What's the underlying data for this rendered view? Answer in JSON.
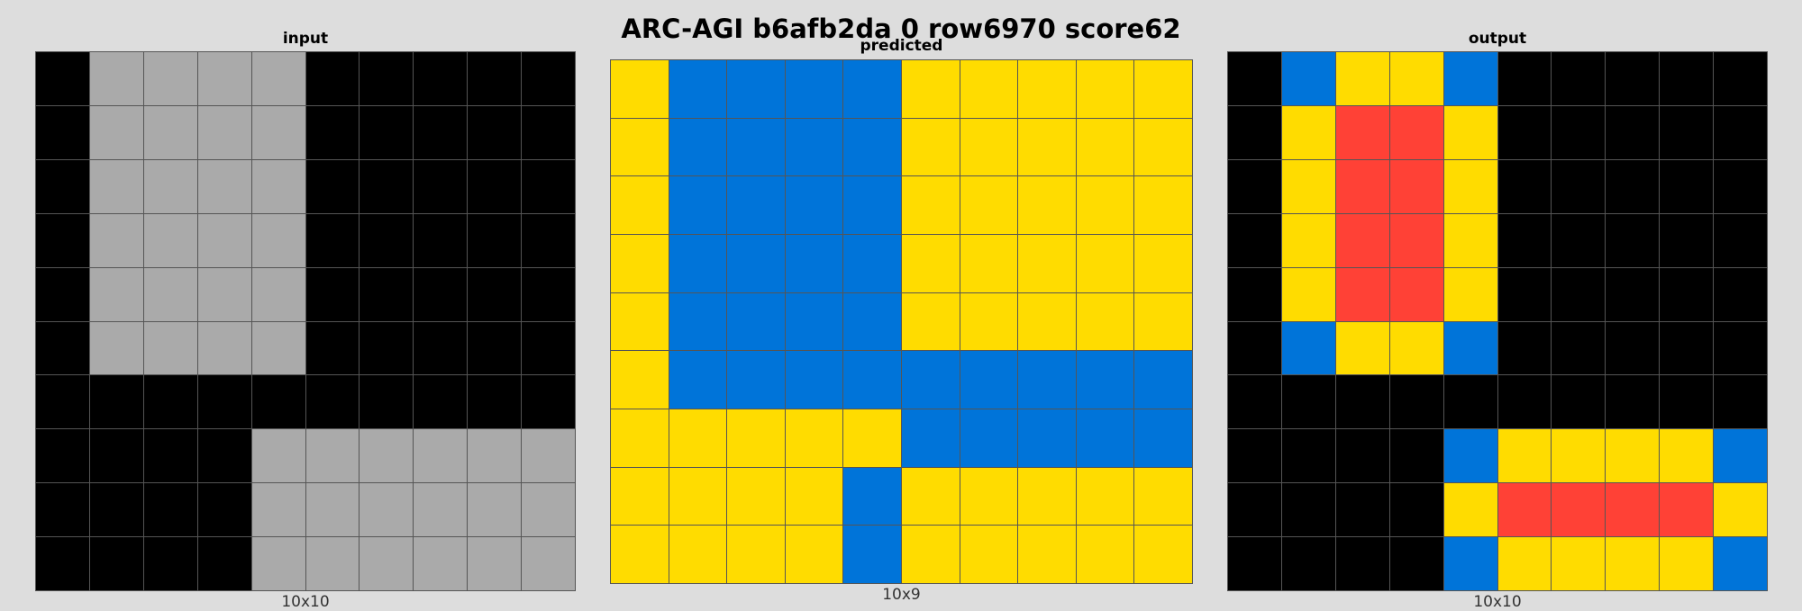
{
  "title": "ARC-AGI b6afb2da 0 row6970 score62",
  "palette": {
    "0": "#000000",
    "1": "#0074d9",
    "2": "#ff4136",
    "4": "#ffdc00",
    "5": "#aaaaaa"
  },
  "panels": [
    {
      "label": "input",
      "dims": "10x10",
      "rows": 10,
      "cols": 10,
      "grid": [
        [
          0,
          5,
          5,
          5,
          5,
          0,
          0,
          0,
          0,
          0
        ],
        [
          0,
          5,
          5,
          5,
          5,
          0,
          0,
          0,
          0,
          0
        ],
        [
          0,
          5,
          5,
          5,
          5,
          0,
          0,
          0,
          0,
          0
        ],
        [
          0,
          5,
          5,
          5,
          5,
          0,
          0,
          0,
          0,
          0
        ],
        [
          0,
          5,
          5,
          5,
          5,
          0,
          0,
          0,
          0,
          0
        ],
        [
          0,
          5,
          5,
          5,
          5,
          0,
          0,
          0,
          0,
          0
        ],
        [
          0,
          0,
          0,
          0,
          0,
          0,
          0,
          0,
          0,
          0
        ],
        [
          0,
          0,
          0,
          0,
          5,
          5,
          5,
          5,
          5,
          5
        ],
        [
          0,
          0,
          0,
          0,
          5,
          5,
          5,
          5,
          5,
          5
        ],
        [
          0,
          0,
          0,
          0,
          5,
          5,
          5,
          5,
          5,
          5
        ]
      ]
    },
    {
      "label": "predicted",
      "dims": "10x9",
      "rows": 9,
      "cols": 10,
      "grid": [
        [
          4,
          1,
          1,
          1,
          1,
          4,
          4,
          4,
          4,
          4
        ],
        [
          4,
          1,
          1,
          1,
          1,
          4,
          4,
          4,
          4,
          4
        ],
        [
          4,
          1,
          1,
          1,
          1,
          4,
          4,
          4,
          4,
          4
        ],
        [
          4,
          1,
          1,
          1,
          1,
          4,
          4,
          4,
          4,
          4
        ],
        [
          4,
          1,
          1,
          1,
          1,
          4,
          4,
          4,
          4,
          4
        ],
        [
          4,
          1,
          1,
          1,
          1,
          1,
          1,
          1,
          1,
          1
        ],
        [
          4,
          4,
          4,
          4,
          4,
          1,
          1,
          1,
          1,
          1
        ],
        [
          4,
          4,
          4,
          4,
          1,
          4,
          4,
          4,
          4,
          4
        ],
        [
          4,
          4,
          4,
          4,
          1,
          4,
          4,
          4,
          4,
          4
        ]
      ]
    },
    {
      "label": "output",
      "dims": "10x10",
      "rows": 10,
      "cols": 10,
      "grid": [
        [
          0,
          1,
          4,
          4,
          1,
          0,
          0,
          0,
          0,
          0
        ],
        [
          0,
          4,
          2,
          2,
          4,
          0,
          0,
          0,
          0,
          0
        ],
        [
          0,
          4,
          2,
          2,
          4,
          0,
          0,
          0,
          0,
          0
        ],
        [
          0,
          4,
          2,
          2,
          4,
          0,
          0,
          0,
          0,
          0
        ],
        [
          0,
          4,
          2,
          2,
          4,
          0,
          0,
          0,
          0,
          0
        ],
        [
          0,
          1,
          4,
          4,
          1,
          0,
          0,
          0,
          0,
          0
        ],
        [
          0,
          0,
          0,
          0,
          0,
          0,
          0,
          0,
          0,
          0
        ],
        [
          0,
          0,
          0,
          0,
          1,
          4,
          4,
          4,
          4,
          1
        ],
        [
          0,
          0,
          0,
          0,
          4,
          2,
          2,
          2,
          2,
          4
        ],
        [
          0,
          0,
          0,
          0,
          1,
          4,
          4,
          4,
          4,
          1
        ]
      ]
    }
  ]
}
